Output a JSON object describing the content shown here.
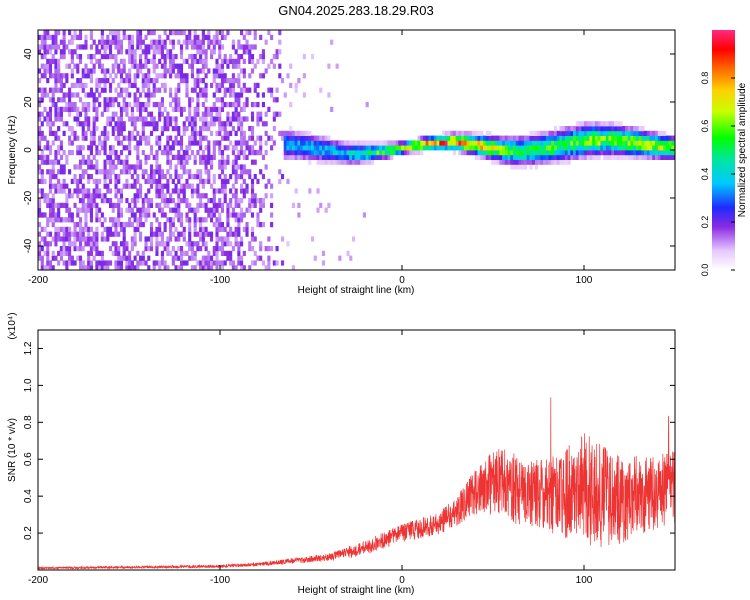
{
  "title": "GN04.2025.283.18.29.R03",
  "chart_data": [
    {
      "type": "heatmap",
      "xlabel": "Height of straight line (km)",
      "ylabel": "Frequency (Hz)",
      "xlim": [
        -200,
        150
      ],
      "ylim": [
        -50,
        50
      ],
      "xticks": [
        -200,
        -100,
        0,
        100
      ],
      "yticks": [
        -40,
        -20,
        0,
        20,
        40
      ],
      "colorbar": {
        "label": "Normalized spectral amplitude",
        "range": [
          0,
          1
        ],
        "ticks": [
          "0.0",
          "0.2",
          "0.4",
          "0.6",
          "0.8"
        ]
      },
      "description_points": [
        {
          "x": -200,
          "freq_center": 0,
          "spread": 50,
          "amplitude": 0.15
        },
        {
          "x": -90,
          "freq_center": 0,
          "spread": 50,
          "amplitude": 0.12
        },
        {
          "x": -70,
          "freq_center": 0,
          "spread": 6,
          "amplitude": 0.35
        },
        {
          "x": -30,
          "freq_center": -1,
          "spread": 4,
          "amplitude": 0.4
        },
        {
          "x": 0,
          "freq_center": 0,
          "spread": 2,
          "amplitude": 0.75
        },
        {
          "x": 30,
          "freq_center": 1,
          "spread": 3,
          "amplitude": 0.9
        },
        {
          "x": 60,
          "freq_center": 0,
          "spread": 5,
          "amplitude": 0.55
        },
        {
          "x": 100,
          "freq_center": 2,
          "spread": 6,
          "amplitude": 0.6
        },
        {
          "x": 150,
          "freq_center": 1,
          "spread": 4,
          "amplitude": 0.7
        }
      ]
    },
    {
      "type": "line",
      "color": "#ee3333",
      "xlabel": "Height of straight line (km)",
      "ylabel": "SNR (10 * v/v)",
      "scale_label": "(x10⁴)",
      "xlim": [
        -200,
        150
      ],
      "ylim": [
        0,
        1.3
      ],
      "xticks": [
        -200,
        -100,
        0,
        100
      ],
      "yticks": [
        "0.2",
        "0.4",
        "0.6",
        "0.8",
        "1.0",
        "1.2"
      ],
      "envelope_x": [
        -200,
        -100,
        -80,
        -60,
        -40,
        -20,
        0,
        20,
        30,
        40,
        50,
        60,
        70,
        80,
        90,
        100,
        110,
        120,
        130,
        140,
        150
      ],
      "envelope_mean": [
        0.01,
        0.02,
        0.03,
        0.05,
        0.07,
        0.12,
        0.2,
        0.25,
        0.32,
        0.42,
        0.48,
        0.45,
        0.42,
        0.4,
        0.42,
        0.45,
        0.4,
        0.38,
        0.4,
        0.42,
        0.45
      ],
      "envelope_amp": [
        0.005,
        0.008,
        0.01,
        0.015,
        0.02,
        0.04,
        0.05,
        0.06,
        0.08,
        0.12,
        0.18,
        0.2,
        0.18,
        0.2,
        0.25,
        0.32,
        0.28,
        0.24,
        0.22,
        0.2,
        0.2
      ]
    }
  ]
}
